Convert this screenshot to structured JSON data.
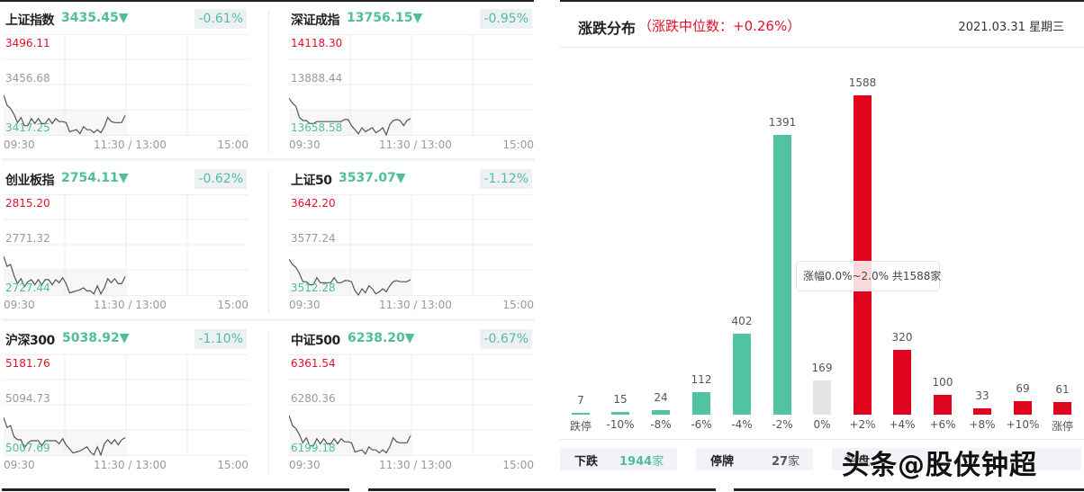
{
  "indices": [
    {
      "name": "上证指数",
      "price": "3435.45",
      "arrow": "▼",
      "change_pct": "-0.61%",
      "y_high": "3496.11",
      "y_mid": "3456.68",
      "y_low": "3417.25"
    },
    {
      "name": "深证成指",
      "price": "13756.15",
      "arrow": "▼",
      "change_pct": "-0.95%",
      "y_high": "14118.30",
      "y_mid": "13888.44",
      "y_low": "13658.58"
    },
    {
      "name": "创业板指",
      "price": "2754.11",
      "arrow": "▼",
      "change_pct": "-0.62%",
      "y_high": "2815.20",
      "y_mid": "2771.32",
      "y_low": "2727.44"
    },
    {
      "name": "上证50",
      "price": "3537.07",
      "arrow": "▼",
      "change_pct": "-1.12%",
      "y_high": "3642.20",
      "y_mid": "3577.24",
      "y_low": "3512.28"
    },
    {
      "name": "沪深300",
      "price": "5038.92",
      "arrow": "▼",
      "change_pct": "-1.10%",
      "y_high": "5181.76",
      "y_mid": "5094.73",
      "y_low": "5007.69"
    },
    {
      "name": "中证500",
      "price": "6238.20",
      "arrow": "▼",
      "change_pct": "-0.67%",
      "y_high": "6361.54",
      "y_mid": "6280.36",
      "y_low": "6199.18"
    }
  ],
  "time_axis": {
    "start": "09:30",
    "mid": "11:30 / 13:00",
    "end": "15:00"
  },
  "distribution": {
    "title": "涨跌分布",
    "median_label": "（涨跌中位数：+0.26%）",
    "date": "2021.03.31 星期三",
    "tooltip": "涨幅0.0%~2.0% 共1588家",
    "stats": [
      {
        "label": "下跌",
        "value": "1944",
        "unit": "家"
      },
      {
        "label": "停牌",
        "value": "27",
        "unit": "家"
      },
      {
        "label": "平盘",
        "value": "",
        "unit": "家"
      }
    ],
    "watermark": "头条@股侠钟超"
  },
  "colors": {
    "down": "#52c3a0",
    "up": "#e0041f",
    "flat": "#e5e5e5"
  },
  "chart_data": [
    {
      "type": "bar",
      "title": "涨跌分布（涨跌中位数：+0.26%）",
      "categories": [
        "跌停",
        "-10%",
        "-8%",
        "-6%",
        "-4%",
        "-2%",
        "0%",
        "+2%",
        "+4%",
        "+6%",
        "+8%",
        "+10%",
        "涨停"
      ],
      "values": [
        7,
        15,
        24,
        112,
        402,
        1391,
        169,
        1588,
        320,
        100,
        33,
        69,
        61
      ],
      "bar_colors": [
        "down",
        "down",
        "down",
        "down",
        "down",
        "down",
        "flat",
        "up",
        "up",
        "up",
        "up",
        "up",
        "up"
      ],
      "xlabel": "",
      "ylabel": "",
      "ylim": [
        0,
        1600
      ],
      "grid": false,
      "data_labels": true
    },
    {
      "type": "line",
      "title": "上证指数",
      "x": [
        "09:30",
        "11:30 / 13:00",
        "15:00"
      ],
      "y_ticks": [
        3496.11,
        3456.68,
        3417.25
      ],
      "last": 3435.45
    },
    {
      "type": "line",
      "title": "深证成指",
      "x": [
        "09:30",
        "11:30 / 13:00",
        "15:00"
      ],
      "y_ticks": [
        14118.3,
        13888.44,
        13658.58
      ],
      "last": 13756.15
    },
    {
      "type": "line",
      "title": "创业板指",
      "x": [
        "09:30",
        "11:30 / 13:00",
        "15:00"
      ],
      "y_ticks": [
        2815.2,
        2771.32,
        2727.44
      ],
      "last": 2754.11
    },
    {
      "type": "line",
      "title": "上证50",
      "x": [
        "09:30",
        "11:30 / 13:00",
        "15:00"
      ],
      "y_ticks": [
        3642.2,
        3577.24,
        3512.28
      ],
      "last": 3537.07
    },
    {
      "type": "line",
      "title": "沪深300",
      "x": [
        "09:30",
        "11:30 / 13:00",
        "15:00"
      ],
      "y_ticks": [
        5181.76,
        5094.73,
        5007.69
      ],
      "last": 5038.92
    },
    {
      "type": "line",
      "title": "中证500",
      "x": [
        "09:30",
        "11:30 / 13:00",
        "15:00"
      ],
      "y_ticks": [
        6361.54,
        6280.36,
        6199.18
      ],
      "last": 6238.2
    }
  ]
}
